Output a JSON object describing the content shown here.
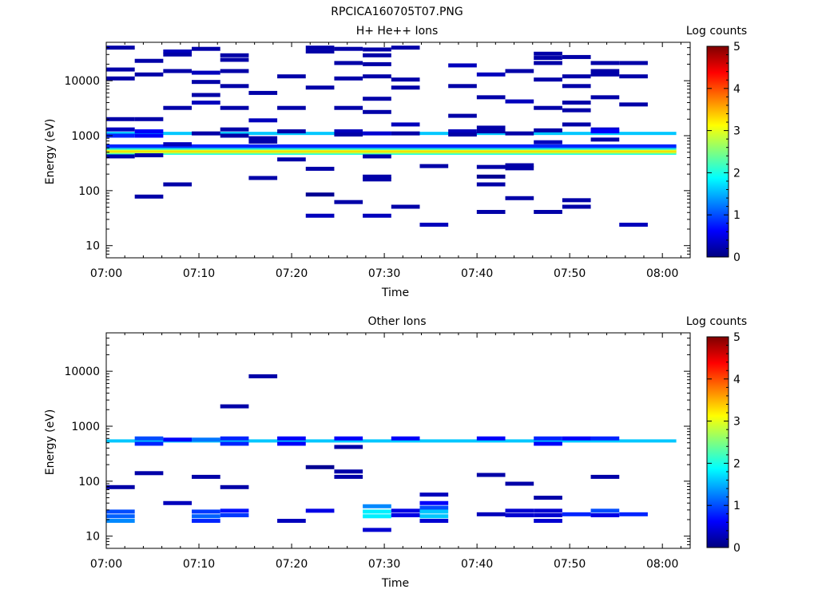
{
  "page_title": "RPCICA160705T07.PNG",
  "colorbar_stops": [
    "#00007f",
    "#0000ff",
    "#007fff",
    "#00ffff",
    "#7fff7f",
    "#ffff00",
    "#ff7f00",
    "#ff0000",
    "#7f0000"
  ],
  "chart_data": [
    {
      "type": "heatmap",
      "title": "H+ He++ Ions",
      "xlabel": "Time",
      "ylabel": "Energy (eV)",
      "colorbar_label": "Log counts",
      "x_ticks": [
        "07:00",
        "07:10",
        "07:20",
        "07:30",
        "07:40",
        "07:50",
        "08:00"
      ],
      "y_ticks": [
        "10",
        "100",
        "1000",
        "10000"
      ],
      "cbar_ticks": [
        "0",
        "1",
        "2",
        "3",
        "4",
        "5"
      ],
      "xlim_minutes": [
        0,
        63
      ],
      "ylim_ev": [
        6,
        50000
      ],
      "y_scale": "log",
      "zlim": [
        0,
        5
      ],
      "columns": 20,
      "bands": [
        {
          "e": 480,
          "z": 2.0
        },
        {
          "e": 500,
          "z": 2.5
        },
        {
          "e": 520,
          "z": 3.0
        },
        {
          "e": 540,
          "z": 3.4
        },
        {
          "e": 560,
          "z": 3.0
        },
        {
          "e": 590,
          "z": 2.2
        },
        {
          "e": 620,
          "z": 1.4
        },
        {
          "e": 650,
          "z": 0.8
        },
        {
          "e": 1100,
          "z": 1.6
        }
      ],
      "cells": [
        {
          "c": 0,
          "e": 40000,
          "z": 0.2
        },
        {
          "c": 0,
          "e": 16000,
          "z": 0.2
        },
        {
          "c": 0,
          "e": 11000,
          "z": 0.2
        },
        {
          "c": 0,
          "e": 2000,
          "z": 0.2
        },
        {
          "c": 0,
          "e": 1300,
          "z": 0.3
        },
        {
          "c": 0,
          "e": 1000,
          "z": 0.8
        },
        {
          "c": 0,
          "e": 420,
          "z": 0.2
        },
        {
          "c": 1,
          "e": 23000,
          "z": 0.2
        },
        {
          "c": 1,
          "e": 13000,
          "z": 0.2
        },
        {
          "c": 1,
          "e": 2000,
          "z": 0.2
        },
        {
          "c": 1,
          "e": 1200,
          "z": 0.6
        },
        {
          "c": 1,
          "e": 1000,
          "z": 0.6
        },
        {
          "c": 1,
          "e": 440,
          "z": 0.2
        },
        {
          "c": 1,
          "e": 78,
          "z": 0.2
        },
        {
          "c": 2,
          "e": 34000,
          "z": 0.3
        },
        {
          "c": 2,
          "e": 30000,
          "z": 0.2
        },
        {
          "c": 2,
          "e": 15000,
          "z": 0.2
        },
        {
          "c": 2,
          "e": 3200,
          "z": 0.2
        },
        {
          "c": 2,
          "e": 700,
          "z": 0.3
        },
        {
          "c": 2,
          "e": 130,
          "z": 0.2
        },
        {
          "c": 3,
          "e": 38000,
          "z": 0.2
        },
        {
          "c": 3,
          "e": 14000,
          "z": 0.3
        },
        {
          "c": 3,
          "e": 9500,
          "z": 0.2
        },
        {
          "c": 3,
          "e": 5500,
          "z": 0.2
        },
        {
          "c": 3,
          "e": 4000,
          "z": 0.3
        },
        {
          "c": 3,
          "e": 1100,
          "z": 0.2
        },
        {
          "c": 4,
          "e": 29000,
          "z": 0.2
        },
        {
          "c": 4,
          "e": 24000,
          "z": 0.2
        },
        {
          "c": 4,
          "e": 15000,
          "z": 0.2
        },
        {
          "c": 4,
          "e": 8000,
          "z": 0.2
        },
        {
          "c": 4,
          "e": 3200,
          "z": 0.2
        },
        {
          "c": 4,
          "e": 1300,
          "z": 0.2
        },
        {
          "c": 4,
          "e": 1000,
          "z": 0.2
        },
        {
          "c": 5,
          "e": 6000,
          "z": 0.2
        },
        {
          "c": 5,
          "e": 1900,
          "z": 0.3
        },
        {
          "c": 5,
          "e": 900,
          "z": 0.2
        },
        {
          "c": 5,
          "e": 780,
          "z": 0.2
        },
        {
          "c": 5,
          "e": 170,
          "z": 0.2
        },
        {
          "c": 6,
          "e": 12000,
          "z": 0.2
        },
        {
          "c": 6,
          "e": 3200,
          "z": 0.2
        },
        {
          "c": 6,
          "e": 1200,
          "z": 0.2
        },
        {
          "c": 6,
          "e": 370,
          "z": 0.2
        },
        {
          "c": 7,
          "e": 40000,
          "z": 0.2
        },
        {
          "c": 7,
          "e": 34000,
          "z": 0.2
        },
        {
          "c": 7,
          "e": 7500,
          "z": 0.2
        },
        {
          "c": 7,
          "e": 250,
          "z": 0.2
        },
        {
          "c": 7,
          "e": 85,
          "z": 0.1
        },
        {
          "c": 7,
          "e": 35,
          "z": 0.3
        },
        {
          "c": 8,
          "e": 38000,
          "z": 0.2
        },
        {
          "c": 8,
          "e": 21000,
          "z": 0.2
        },
        {
          "c": 8,
          "e": 11000,
          "z": 0.2
        },
        {
          "c": 8,
          "e": 3200,
          "z": 0.2
        },
        {
          "c": 8,
          "e": 1200,
          "z": 0.3
        },
        {
          "c": 8,
          "e": 1050,
          "z": 0.2
        },
        {
          "c": 8,
          "e": 62,
          "z": 0.2
        },
        {
          "c": 9,
          "e": 37000,
          "z": 0.2
        },
        {
          "c": 9,
          "e": 29000,
          "z": 0.2
        },
        {
          "c": 9,
          "e": 20000,
          "z": 0.2
        },
        {
          "c": 9,
          "e": 12000,
          "z": 0.2
        },
        {
          "c": 9,
          "e": 4700,
          "z": 0.2
        },
        {
          "c": 9,
          "e": 2700,
          "z": 0.2
        },
        {
          "c": 9,
          "e": 1100,
          "z": 0.4
        },
        {
          "c": 9,
          "e": 420,
          "z": 0.2
        },
        {
          "c": 9,
          "e": 180,
          "z": 0.2
        },
        {
          "c": 9,
          "e": 160,
          "z": 0.2
        },
        {
          "c": 9,
          "e": 35,
          "z": 0.3
        },
        {
          "c": 10,
          "e": 40000,
          "z": 0.2
        },
        {
          "c": 10,
          "e": 10500,
          "z": 0.2
        },
        {
          "c": 10,
          "e": 7500,
          "z": 0.2
        },
        {
          "c": 10,
          "e": 1600,
          "z": 0.3
        },
        {
          "c": 10,
          "e": 1100,
          "z": 0.2
        },
        {
          "c": 10,
          "e": 51,
          "z": 0.2
        },
        {
          "c": 11,
          "e": 280,
          "z": 0.2
        },
        {
          "c": 11,
          "e": 24,
          "z": 0.3
        },
        {
          "c": 12,
          "e": 19000,
          "z": 0.3
        },
        {
          "c": 12,
          "e": 8000,
          "z": 0.2
        },
        {
          "c": 12,
          "e": 2300,
          "z": 0.2
        },
        {
          "c": 12,
          "e": 1200,
          "z": 0.3
        },
        {
          "c": 12,
          "e": 1050,
          "z": 0.2
        },
        {
          "c": 13,
          "e": 13000,
          "z": 0.3
        },
        {
          "c": 13,
          "e": 5000,
          "z": 0.2
        },
        {
          "c": 13,
          "e": 1400,
          "z": 0.2
        },
        {
          "c": 13,
          "e": 1200,
          "z": 0.2
        },
        {
          "c": 13,
          "e": 270,
          "z": 0.2
        },
        {
          "c": 13,
          "e": 180,
          "z": 0.1
        },
        {
          "c": 13,
          "e": 130,
          "z": 0.2
        },
        {
          "c": 13,
          "e": 41,
          "z": 0.2
        },
        {
          "c": 14,
          "e": 15000,
          "z": 0.2
        },
        {
          "c": 14,
          "e": 4200,
          "z": 0.3
        },
        {
          "c": 14,
          "e": 1100,
          "z": 0.2
        },
        {
          "c": 14,
          "e": 290,
          "z": 0.2
        },
        {
          "c": 14,
          "e": 255,
          "z": 0.2
        },
        {
          "c": 14,
          "e": 73,
          "z": 0.2
        },
        {
          "c": 15,
          "e": 31000,
          "z": 0.2
        },
        {
          "c": 15,
          "e": 26000,
          "z": 0.2
        },
        {
          "c": 15,
          "e": 21000,
          "z": 0.2
        },
        {
          "c": 15,
          "e": 10500,
          "z": 0.2
        },
        {
          "c": 15,
          "e": 3200,
          "z": 0.2
        },
        {
          "c": 15,
          "e": 1250,
          "z": 0.2
        },
        {
          "c": 15,
          "e": 760,
          "z": 0.3
        },
        {
          "c": 15,
          "e": 41,
          "z": 0.2
        },
        {
          "c": 16,
          "e": 27000,
          "z": 0.2
        },
        {
          "c": 16,
          "e": 12000,
          "z": 0.2
        },
        {
          "c": 16,
          "e": 8000,
          "z": 0.2
        },
        {
          "c": 16,
          "e": 4000,
          "z": 0.2
        },
        {
          "c": 16,
          "e": 2900,
          "z": 0.2
        },
        {
          "c": 16,
          "e": 1600,
          "z": 0.2
        },
        {
          "c": 16,
          "e": 67,
          "z": 0.2
        },
        {
          "c": 16,
          "e": 51,
          "z": 0.2
        },
        {
          "c": 17,
          "e": 21000,
          "z": 0.2
        },
        {
          "c": 17,
          "e": 15000,
          "z": 0.2
        },
        {
          "c": 17,
          "e": 13000,
          "z": 0.2
        },
        {
          "c": 17,
          "e": 5000,
          "z": 0.2
        },
        {
          "c": 17,
          "e": 1300,
          "z": 0.4
        },
        {
          "c": 17,
          "e": 1200,
          "z": 0.6
        },
        {
          "c": 17,
          "e": 850,
          "z": 0.2
        },
        {
          "c": 18,
          "e": 21000,
          "z": 0.2
        },
        {
          "c": 18,
          "e": 12000,
          "z": 0.2
        },
        {
          "c": 18,
          "e": 3700,
          "z": 0.2
        },
        {
          "c": 18,
          "e": 24,
          "z": 0.3
        }
      ]
    },
    {
      "type": "heatmap",
      "title": "Other Ions",
      "xlabel": "Time",
      "ylabel": "Energy (eV)",
      "colorbar_label": "Log counts",
      "x_ticks": [
        "07:00",
        "07:10",
        "07:20",
        "07:30",
        "07:40",
        "07:50",
        "08:00"
      ],
      "y_ticks": [
        "10",
        "100",
        "1000",
        "10000"
      ],
      "cbar_ticks": [
        "0",
        "1",
        "2",
        "3",
        "4",
        "5"
      ],
      "xlim_minutes": [
        0,
        63
      ],
      "ylim_ev": [
        6,
        50000
      ],
      "y_scale": "log",
      "zlim": [
        0,
        5
      ],
      "columns": 20,
      "bands": [
        {
          "e": 540,
          "z": 1.6
        }
      ],
      "cells": [
        {
          "c": 0,
          "e": 78,
          "z": 0.2
        },
        {
          "c": 0,
          "e": 28,
          "z": 1.0
        },
        {
          "c": 0,
          "e": 23,
          "z": 1.1
        },
        {
          "c": 0,
          "e": 19,
          "z": 1.3
        },
        {
          "c": 1,
          "e": 600,
          "z": 1.0
        },
        {
          "c": 1,
          "e": 480,
          "z": 0.8
        },
        {
          "c": 1,
          "e": 140,
          "z": 0.2
        },
        {
          "c": 2,
          "e": 570,
          "z": 0.6
        },
        {
          "c": 2,
          "e": 40,
          "z": 0.3
        },
        {
          "c": 3,
          "e": 570,
          "z": 1.2
        },
        {
          "c": 3,
          "e": 120,
          "z": 0.2
        },
        {
          "c": 3,
          "e": 28,
          "z": 0.9
        },
        {
          "c": 3,
          "e": 23,
          "z": 1.1
        },
        {
          "c": 3,
          "e": 19,
          "z": 0.8
        },
        {
          "c": 4,
          "e": 600,
          "z": 0.8
        },
        {
          "c": 4,
          "e": 480,
          "z": 0.8
        },
        {
          "c": 4,
          "e": 2300,
          "z": 0.2
        },
        {
          "c": 4,
          "e": 78,
          "z": 0.2
        },
        {
          "c": 4,
          "e": 29,
          "z": 0.7
        },
        {
          "c": 4,
          "e": 24,
          "z": 0.9
        },
        {
          "c": 5,
          "e": 8100,
          "z": 0.2
        },
        {
          "c": 6,
          "e": 600,
          "z": 0.6
        },
        {
          "c": 6,
          "e": 480,
          "z": 0.6
        },
        {
          "c": 6,
          "e": 19,
          "z": 0.3
        },
        {
          "c": 7,
          "e": 180,
          "z": 0.1
        },
        {
          "c": 7,
          "e": 29,
          "z": 0.5
        },
        {
          "c": 8,
          "e": 600,
          "z": 0.6
        },
        {
          "c": 8,
          "e": 420,
          "z": 0.2
        },
        {
          "c": 8,
          "e": 150,
          "z": 0.2
        },
        {
          "c": 8,
          "e": 120,
          "z": 0.2
        },
        {
          "c": 9,
          "e": 35,
          "z": 1.3
        },
        {
          "c": 9,
          "e": 28,
          "z": 1.8
        },
        {
          "c": 9,
          "e": 23,
          "z": 1.8
        },
        {
          "c": 9,
          "e": 13,
          "z": 0.4
        },
        {
          "c": 10,
          "e": 600,
          "z": 0.6
        },
        {
          "c": 10,
          "e": 29,
          "z": 0.5
        },
        {
          "c": 10,
          "e": 24,
          "z": 0.5
        },
        {
          "c": 11,
          "e": 57,
          "z": 0.3
        },
        {
          "c": 11,
          "e": 40,
          "z": 0.6
        },
        {
          "c": 11,
          "e": 33,
          "z": 1.0
        },
        {
          "c": 11,
          "e": 28,
          "z": 1.6
        },
        {
          "c": 11,
          "e": 23,
          "z": 1.6
        },
        {
          "c": 11,
          "e": 19,
          "z": 0.4
        },
        {
          "c": 13,
          "e": 600,
          "z": 0.6
        },
        {
          "c": 13,
          "e": 130,
          "z": 0.2
        },
        {
          "c": 13,
          "e": 25,
          "z": 0.3
        },
        {
          "c": 14,
          "e": 90,
          "z": 0.2
        },
        {
          "c": 14,
          "e": 29,
          "z": 0.4
        },
        {
          "c": 14,
          "e": 24,
          "z": 0.4
        },
        {
          "c": 15,
          "e": 600,
          "z": 0.8
        },
        {
          "c": 15,
          "e": 480,
          "z": 0.6
        },
        {
          "c": 15,
          "e": 50,
          "z": 0.2
        },
        {
          "c": 15,
          "e": 29,
          "z": 0.4
        },
        {
          "c": 15,
          "e": 24,
          "z": 0.4
        },
        {
          "c": 15,
          "e": 19,
          "z": 0.4
        },
        {
          "c": 16,
          "e": 600,
          "z": 0.6
        },
        {
          "c": 16,
          "e": 25,
          "z": 0.8
        },
        {
          "c": 17,
          "e": 600,
          "z": 0.8
        },
        {
          "c": 17,
          "e": 120,
          "z": 0.2
        },
        {
          "c": 17,
          "e": 29,
          "z": 1.0
        },
        {
          "c": 17,
          "e": 24,
          "z": 0.5
        },
        {
          "c": 18,
          "e": 25,
          "z": 0.8
        }
      ]
    }
  ]
}
